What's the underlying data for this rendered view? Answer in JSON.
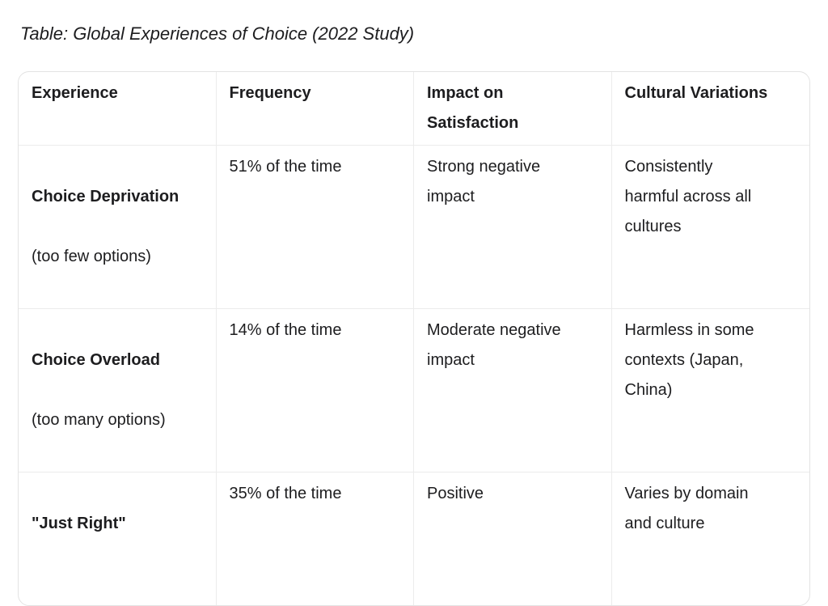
{
  "title": "Table: Global Experiences of Choice (2022 Study)",
  "table": {
    "headers": [
      "Experience",
      "Frequency",
      "Impact on\nSatisfaction",
      "Cultural Variations"
    ],
    "rows": [
      {
        "experience": "Choice Deprivation",
        "experience_note": "(too few options)",
        "frequency": "51% of the time",
        "impact": "Strong negative\nimpact",
        "cultural_variations": "Consistently\nharmful across all\ncultures"
      },
      {
        "experience": "Choice Overload",
        "experience_note": "(too many options)",
        "frequency": "14% of the time",
        "impact": "Moderate negative\nimpact",
        "cultural_variations": "Harmless in some\ncontexts (Japan,\nChina)"
      },
      {
        "experience": "\"Just Right\"",
        "experience_note": "",
        "frequency": "35% of the time",
        "impact": "Positive",
        "cultural_variations": "Varies by domain\nand culture"
      }
    ]
  },
  "colors": {
    "text": "#1d1d1f",
    "border_outer": "#e3e3e3",
    "border_inner": "#ececec",
    "background": "#ffffff"
  }
}
